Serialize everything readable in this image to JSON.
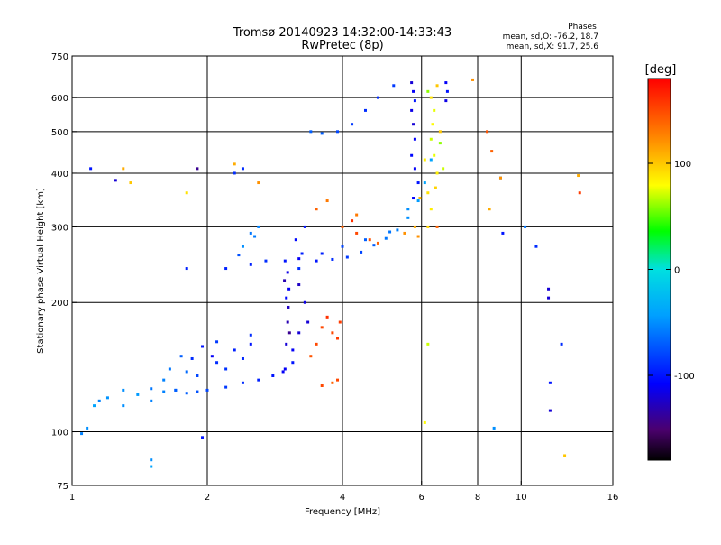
{
  "chart_data": {
    "type": "scatter",
    "title": "Tromsø 20140923 14:32:00-14:33:43",
    "subtitle": "RwPretec (8p)",
    "xlabel": "Frequency [MHz]",
    "ylabel": "Stationary phase Virtual Height [km]",
    "x_scale": "log",
    "y_scale": "log",
    "xlim": [
      1,
      16
    ],
    "ylim": [
      75,
      750
    ],
    "x_ticks": [
      1,
      2,
      4,
      6,
      8,
      10,
      16
    ],
    "y_ticks": [
      75,
      100,
      200,
      300,
      400,
      500,
      600,
      750
    ],
    "x_grid": [
      2,
      4,
      6,
      8,
      10
    ],
    "y_grid": [
      100,
      200,
      300,
      400,
      500,
      600
    ],
    "grid": true,
    "color_variable": "phase",
    "phase_stats": {
      "heading": "Phases",
      "line_o": "mean, sd,O: -76.2, 18.7",
      "line_x": "mean, sd,X:  91.7, 25.6"
    },
    "colorbar": {
      "unit": "[deg]",
      "range": [
        -180,
        180
      ],
      "tick_labels": [
        "100",
        "0",
        "-100"
      ],
      "tick_values": [
        100,
        0,
        -100
      ]
    },
    "series": [
      {
        "points": [
          [
            1.05,
            99,
            -55
          ],
          [
            1.08,
            102,
            -50
          ],
          [
            1.12,
            115,
            -40
          ],
          [
            1.15,
            118,
            -55
          ],
          [
            1.2,
            120,
            -48
          ],
          [
            1.3,
            125,
            -50
          ],
          [
            1.4,
            122,
            -45
          ],
          [
            1.5,
            126,
            -60
          ],
          [
            1.6,
            124,
            -55
          ],
          [
            1.7,
            125,
            -65
          ],
          [
            1.8,
            123,
            -70
          ],
          [
            1.9,
            124,
            -75
          ],
          [
            2.0,
            125,
            -80
          ],
          [
            2.2,
            127,
            -85
          ],
          [
            2.4,
            130,
            -90
          ],
          [
            2.6,
            132,
            -95
          ],
          [
            2.8,
            135,
            -100
          ],
          [
            2.95,
            138,
            -110
          ],
          [
            1.3,
            115,
            -50
          ],
          [
            1.5,
            118,
            -55
          ],
          [
            1.7,
            125,
            -70
          ],
          [
            1.9,
            135,
            -80
          ],
          [
            2.1,
            145,
            -90
          ],
          [
            2.3,
            155,
            -95
          ],
          [
            2.5,
            160,
            -100
          ],
          [
            2.05,
            150,
            -110
          ],
          [
            1.95,
            158,
            -100
          ],
          [
            1.85,
            148,
            -90
          ],
          [
            2.2,
            140,
            -88
          ],
          [
            2.4,
            148,
            -92
          ],
          [
            1.65,
            140,
            -60
          ],
          [
            1.75,
            150,
            -70
          ],
          [
            2.1,
            162,
            -85
          ],
          [
            2.5,
            168,
            -90
          ],
          [
            1.6,
            132,
            -55
          ],
          [
            1.8,
            138,
            -65
          ],
          [
            2.98,
            140,
            -110
          ],
          [
            3.0,
            160,
            -120
          ],
          [
            3.02,
            180,
            -130
          ],
          [
            3.03,
            195,
            -125
          ],
          [
            3.04,
            215,
            -110
          ],
          [
            3.02,
            235,
            -115
          ],
          [
            2.98,
            250,
            -100
          ],
          [
            3.05,
            170,
            -140
          ],
          [
            3.0,
            205,
            -105
          ],
          [
            2.97,
            225,
            -130
          ],
          [
            3.1,
            145,
            -100
          ],
          [
            3.2,
            170,
            -120
          ],
          [
            3.3,
            200,
            -115
          ],
          [
            3.2,
            240,
            -90
          ],
          [
            3.15,
            280,
            -105
          ],
          [
            3.3,
            300,
            -100
          ],
          [
            3.25,
            260,
            -95
          ],
          [
            3.35,
            180,
            -120
          ],
          [
            3.1,
            155,
            -110
          ],
          [
            3.2,
            220,
            -125
          ],
          [
            3.2,
            253,
            -110
          ],
          [
            3.5,
            250,
            -100
          ],
          [
            3.8,
            252,
            -90
          ],
          [
            4.1,
            255,
            -85
          ],
          [
            4.4,
            262,
            -80
          ],
          [
            4.7,
            272,
            -70
          ],
          [
            5.0,
            282,
            -60
          ],
          [
            5.3,
            295,
            -55
          ],
          [
            5.6,
            315,
            -50
          ],
          [
            5.9,
            345,
            -45
          ],
          [
            6.1,
            380,
            -40
          ],
          [
            6.3,
            430,
            -40
          ],
          [
            3.6,
            260,
            -95
          ],
          [
            4.0,
            270,
            -80
          ],
          [
            4.5,
            280,
            -70
          ],
          [
            5.1,
            292,
            -60
          ],
          [
            5.6,
            330,
            -50
          ],
          [
            3.4,
            500,
            -70
          ],
          [
            3.6,
            495,
            -70
          ],
          [
            3.9,
            500,
            -80
          ],
          [
            4.2,
            520,
            -85
          ],
          [
            4.5,
            560,
            -90
          ],
          [
            4.8,
            600,
            -90
          ],
          [
            5.2,
            640,
            -85
          ],
          [
            5.7,
            650,
            -120
          ],
          [
            5.75,
            620,
            -110
          ],
          [
            5.8,
            590,
            -100
          ],
          [
            5.7,
            560,
            -115
          ],
          [
            5.75,
            520,
            -120
          ],
          [
            5.8,
            480,
            -110
          ],
          [
            5.7,
            440,
            -105
          ],
          [
            5.8,
            410,
            -110
          ],
          [
            5.9,
            380,
            -100
          ],
          [
            5.75,
            350,
            -108
          ],
          [
            6.8,
            650,
            -110
          ],
          [
            6.85,
            620,
            -100
          ],
          [
            6.8,
            590,
            -115
          ],
          [
            2.2,
            240,
            -95
          ],
          [
            2.5,
            245,
            -95
          ],
          [
            2.7,
            250,
            -90
          ],
          [
            2.5,
            290,
            -60
          ],
          [
            2.6,
            300,
            -55
          ],
          [
            2.4,
            270,
            -50
          ],
          [
            2.55,
            285,
            -58
          ],
          [
            2.35,
            258,
            -75
          ],
          [
            1.1,
            410,
            -100
          ],
          [
            1.25,
            385,
            -120
          ],
          [
            1.9,
            410,
            -140
          ],
          [
            2.3,
            400,
            -90
          ],
          [
            2.4,
            410,
            -90
          ],
          [
            1.8,
            240,
            -95
          ],
          [
            9.1,
            290,
            -100
          ],
          [
            11.5,
            215,
            -120
          ],
          [
            11.5,
            205,
            -120
          ],
          [
            12.3,
            160,
            -90
          ],
          [
            10.2,
            300,
            -60
          ],
          [
            1.5,
            86,
            -50
          ],
          [
            1.5,
            83,
            -40
          ],
          [
            1.95,
            97,
            -100
          ],
          [
            8.7,
            102,
            -50
          ],
          [
            9.0,
            390,
            -60
          ],
          [
            10.8,
            270,
            -90
          ],
          [
            11.6,
            130,
            -100
          ],
          [
            11.6,
            112,
            -120
          ]
        ]
      },
      {
        "points": [
          [
            4.0,
            300,
            140
          ],
          [
            4.3,
            290,
            150
          ],
          [
            4.6,
            280,
            145
          ],
          [
            4.8,
            275,
            140
          ],
          [
            4.2,
            310,
            160
          ],
          [
            5.5,
            290,
            120
          ],
          [
            5.8,
            300,
            110
          ],
          [
            5.9,
            285,
            120
          ],
          [
            6.2,
            300,
            95
          ],
          [
            6.3,
            330,
            85
          ],
          [
            6.2,
            360,
            90
          ],
          [
            6.5,
            400,
            85
          ],
          [
            6.4,
            440,
            75
          ],
          [
            6.3,
            480,
            70
          ],
          [
            6.35,
            520,
            80
          ],
          [
            6.4,
            560,
            75
          ],
          [
            6.3,
            600,
            90
          ],
          [
            6.5,
            640,
            100
          ],
          [
            6.2,
            620,
            60
          ],
          [
            6.6,
            470,
            60
          ],
          [
            6.1,
            430,
            85
          ],
          [
            6.45,
            370,
            95
          ],
          [
            6.7,
            410,
            70
          ],
          [
            5.95,
            350,
            105
          ],
          [
            3.6,
            175,
            150
          ],
          [
            3.8,
            170,
            150
          ],
          [
            3.9,
            165,
            155
          ],
          [
            3.7,
            185,
            160
          ],
          [
            3.5,
            160,
            150
          ],
          [
            3.4,
            150,
            145
          ],
          [
            3.6,
            128,
            150
          ],
          [
            3.8,
            130,
            140
          ],
          [
            3.9,
            132,
            150
          ],
          [
            3.95,
            180,
            155
          ],
          [
            1.3,
            410,
            110
          ],
          [
            1.35,
            380,
            100
          ],
          [
            1.8,
            360,
            90
          ],
          [
            2.3,
            420,
            110
          ],
          [
            2.6,
            380,
            120
          ],
          [
            3.5,
            330,
            140
          ],
          [
            3.7,
            345,
            130
          ],
          [
            4.3,
            320,
            130
          ],
          [
            8.6,
            450,
            140
          ],
          [
            8.4,
            500,
            145
          ],
          [
            7.8,
            660,
            120
          ],
          [
            9.0,
            390,
            120
          ],
          [
            13.5,
            360,
            155
          ],
          [
            13.4,
            395,
            110
          ],
          [
            12.5,
            88,
            100
          ],
          [
            6.1,
            105,
            80
          ],
          [
            6.2,
            160,
            70
          ],
          [
            8.5,
            330,
            110
          ],
          [
            6.5,
            300,
            140
          ],
          [
            6.6,
            500,
            100
          ]
        ]
      }
    ]
  }
}
